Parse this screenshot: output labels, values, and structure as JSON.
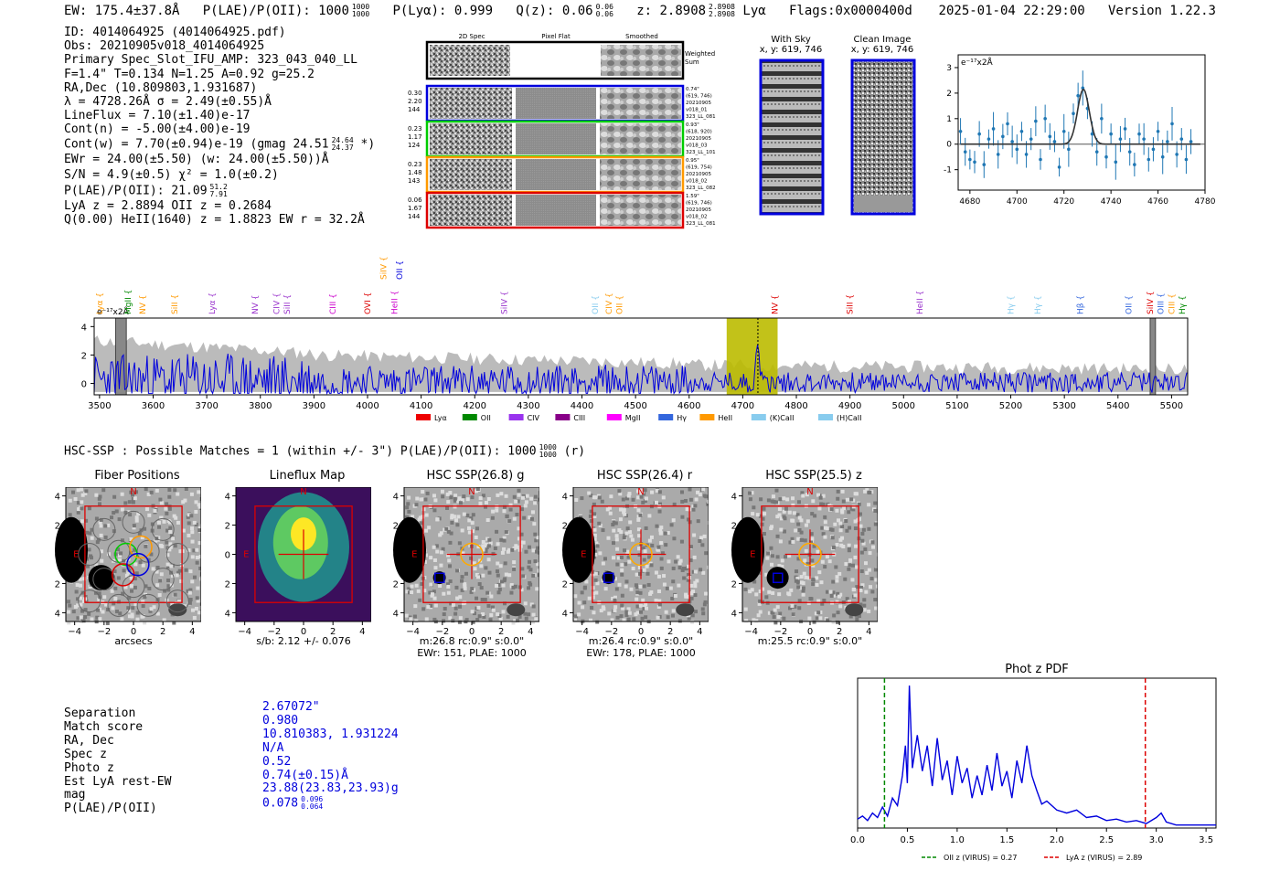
{
  "header": {
    "ew": "EW: 175.4±37.8Å",
    "plae": "P(LAE)/P(OII): 1000",
    "plae_hi": "1000",
    "plae_lo": "1000",
    "plya": "P(Lyα): 0.999",
    "qz": "Q(z): 0.06",
    "qz_hi": "0.06",
    "qz_lo": "0.06",
    "z": "z: 2.8908",
    "z_hi": "2.8908",
    "z_lo": "2.8908",
    "line": "Lyα",
    "flags": "Flags:0x0000400d",
    "timestamp": "2025-01-04 22:29:00",
    "version": "Version 1.22.3"
  },
  "info": {
    "l1": "ID: 4014064925 (4014064925.pdf)",
    "l2": "Obs: 20210905v018_4014064925",
    "l3": "Primary Spec_Slot_IFU_AMP: 323_043_040_LL",
    "l4": "F=1.4\"  T=0.134  N=1.25  A=0.92  g=25.2",
    "l5": "RA,Dec (10.809803,1.931687)",
    "l6": "λ = 4728.26Å  σ = 2.49(±0.55)Å",
    "l7": "LineFlux = 7.10(±1.40)e-17",
    "l8": "Cont(n) = -5.00(±4.00)e-19",
    "l9": "Cont(w) = 7.70(±0.94)e-19 (gmag 24.51",
    "l9_hi": "24.64",
    "l9_lo": "24.37",
    "l9_end": " *)",
    "l10": "EWr = 24.00(±5.50) (w: 24.00(±5.50))Å",
    "l11": "S/N = 4.9(±0.5)  χ² = 1.0(±0.2)",
    "l12": "P(LAE)/P(OII): 21.09",
    "l12_hi": "51.2",
    "l12_lo": "7.91",
    "l13": "LyA z = 2.8894  OII z = 0.2684",
    "l14": "Q(0.00) HeII(1640) z = 1.8823  EW r = 32.2Å"
  },
  "cutouts": {
    "col1": "2D Spec",
    "col2": "Pixel Flat",
    "col3": "Smoothed",
    "weighted": "Weighted",
    "sum": "Sum",
    "rows": [
      {
        "left": [
          "0.30",
          "2.20",
          "144"
        ],
        "right": [
          "0.74\"",
          "(619, 746)",
          "20210905",
          "v018_01",
          "323_LL_081"
        ],
        "color": "#0000dd"
      },
      {
        "left": [
          "0.23",
          "1.17",
          "124"
        ],
        "right": [
          "0.93\"",
          "(618, 920)",
          "20210905",
          "v018_03",
          "323_LL_101"
        ],
        "color": "#00cc00"
      },
      {
        "left": [
          "0.23",
          "1.48",
          "143"
        ],
        "right": [
          "0.95\"",
          "(619, 754)",
          "20210905",
          "v018_02",
          "323_LL_082"
        ],
        "color": "#ff9900"
      },
      {
        "left": [
          "0.06",
          "1.67",
          "144"
        ],
        "right": [
          "1.59\"",
          "(619, 746)",
          "20210905",
          "v018_02",
          "323_LL_081"
        ],
        "color": "#dd0000"
      }
    ]
  },
  "sky": {
    "with_sky": "With Sky",
    "with_sky_xy": "x, y: 619, 746",
    "clean": "Clean Image",
    "clean_xy": "x, y: 619, 746"
  },
  "chart_data": [
    {
      "type": "scatter",
      "id": "line-fit",
      "ylabel": "e⁻¹⁷x2Å",
      "xlim": [
        4675,
        4780
      ],
      "ylim": [
        -1.8,
        3.5
      ],
      "xticks": [
        4680,
        4700,
        4720,
        4740,
        4760,
        4780
      ],
      "yticks": [
        -1,
        0,
        1,
        2,
        3
      ],
      "center": 4728.26,
      "sigma": 2.49,
      "amplitude": 2.15,
      "points": [
        [
          4676,
          0.5
        ],
        [
          4678,
          -0.3
        ],
        [
          4680,
          -0.6
        ],
        [
          4682,
          -0.7
        ],
        [
          4684,
          0.4
        ],
        [
          4686,
          -0.8
        ],
        [
          4688,
          0.2
        ],
        [
          4690,
          0.6
        ],
        [
          4692,
          -0.4
        ],
        [
          4694,
          0.3
        ],
        [
          4696,
          0.8
        ],
        [
          4698,
          0.1
        ],
        [
          4700,
          -0.2
        ],
        [
          4702,
          0.5
        ],
        [
          4704,
          -0.4
        ],
        [
          4706,
          0.2
        ],
        [
          4708,
          0.9
        ],
        [
          4710,
          -0.6
        ],
        [
          4712,
          1.0
        ],
        [
          4714,
          0.3
        ],
        [
          4716,
          0.1
        ],
        [
          4718,
          -0.9
        ],
        [
          4720,
          0.5
        ],
        [
          4722,
          -0.2
        ],
        [
          4724,
          1.2
        ],
        [
          4726,
          1.9
        ],
        [
          4728,
          2.2
        ],
        [
          4730,
          1.4
        ],
        [
          4732,
          0.4
        ],
        [
          4734,
          -0.3
        ],
        [
          4736,
          1.0
        ],
        [
          4738,
          -0.5
        ],
        [
          4740,
          0.4
        ],
        [
          4742,
          -0.7
        ],
        [
          4744,
          0.2
        ],
        [
          4746,
          0.6
        ],
        [
          4748,
          -0.3
        ],
        [
          4750,
          -0.8
        ],
        [
          4752,
          0.4
        ],
        [
          4754,
          0.2
        ],
        [
          4756,
          -0.6
        ],
        [
          4758,
          -0.2
        ],
        [
          4760,
          0.5
        ],
        [
          4762,
          -0.5
        ],
        [
          4764,
          0.1
        ],
        [
          4766,
          0.8
        ],
        [
          4768,
          -0.4
        ],
        [
          4770,
          0.2
        ],
        [
          4772,
          -0.6
        ],
        [
          4774,
          0.1
        ]
      ]
    },
    {
      "type": "line",
      "id": "full-spectrum",
      "ylabel": "e⁻¹⁷x2Å",
      "xlim": [
        3490,
        5530
      ],
      "ylim": [
        -0.8,
        4.6
      ],
      "xticks": [
        3500,
        3600,
        3700,
        3800,
        3900,
        4000,
        4100,
        4200,
        4300,
        4400,
        4500,
        4600,
        4700,
        4800,
        4900,
        5000,
        5100,
        5200,
        5300,
        5400,
        5500
      ],
      "yticks": [
        0,
        2,
        4
      ],
      "highlight": [
        4670,
        4765
      ],
      "marker": 4728.26,
      "gray_bands": [
        [
          3530,
          3550
        ],
        [
          5460,
          5470
        ]
      ],
      "lines_top": [
        {
          "name": "SiIV",
          "wl": 4030,
          "color": "#ff9900"
        },
        {
          "name": "OII",
          "wl": 4060,
          "color": "#0000dd"
        }
      ],
      "lines": [
        {
          "name": "Lyα",
          "wl": 3500,
          "color": "#ff9900"
        },
        {
          "name": "MgII",
          "wl": 3553,
          "color": "#008800"
        },
        {
          "name": "NV",
          "wl": 3580,
          "color": "#ff9900"
        },
        {
          "name": "SiII",
          "wl": 3640,
          "color": "#ff9900"
        },
        {
          "name": "Lyα",
          "wl": 3710,
          "color": "#9933cc"
        },
        {
          "name": "NV",
          "wl": 3790,
          "color": "#9933cc"
        },
        {
          "name": "CIV",
          "wl": 3830,
          "color": "#9933cc"
        },
        {
          "name": "SiII",
          "wl": 3850,
          "color": "#9933cc"
        },
        {
          "name": "CIII",
          "wl": 3935,
          "color": "#cc00cc"
        },
        {
          "name": "OVI",
          "wl": 4000,
          "color": "#dd0000"
        },
        {
          "name": "HeII",
          "wl": 4050,
          "color": "#cc00cc"
        },
        {
          "name": "SiIV",
          "wl": 4255,
          "color": "#9933cc"
        },
        {
          "name": "OII",
          "wl": 4425,
          "color": "#88ccee"
        },
        {
          "name": "CIV",
          "wl": 4450,
          "color": "#ff9900"
        },
        {
          "name": "OII",
          "wl": 4470,
          "color": "#ff9900"
        },
        {
          "name": "NV",
          "wl": 4760,
          "color": "#dd0000"
        },
        {
          "name": "SiII",
          "wl": 4900,
          "color": "#dd0000"
        },
        {
          "name": "HeII",
          "wl": 5030,
          "color": "#9933cc"
        },
        {
          "name": "Hγ",
          "wl": 5200,
          "color": "#88ccee"
        },
        {
          "name": "Hγ",
          "wl": 5250,
          "color": "#88ccee"
        },
        {
          "name": "Hβ",
          "wl": 5330,
          "color": "#3366dd"
        },
        {
          "name": "OII",
          "wl": 5420,
          "color": "#3366dd"
        },
        {
          "name": "SiIV",
          "wl": 5460,
          "color": "#dd0000"
        },
        {
          "name": "OIII",
          "wl": 5480,
          "color": "#3366dd"
        },
        {
          "name": "CIII",
          "wl": 5500,
          "color": "#ff9900"
        },
        {
          "name": "Hγ",
          "wl": 5520,
          "color": "#008800"
        }
      ],
      "legend": [
        {
          "name": "Lyα",
          "color": "#ee0000"
        },
        {
          "name": "OII",
          "color": "#008800"
        },
        {
          "name": "CIV",
          "color": "#9933ee"
        },
        {
          "name": "CIII",
          "color": "#880088"
        },
        {
          "name": "MgII",
          "color": "#ff00ff"
        },
        {
          "name": "Hγ",
          "color": "#3366dd"
        },
        {
          "name": "HeII",
          "color": "#ff9900"
        },
        {
          "name": "(K)CaII",
          "color": "#88ccee"
        },
        {
          "name": "(H)CaII",
          "color": "#88ccee"
        }
      ]
    },
    {
      "type": "line",
      "id": "phot-z-pdf",
      "title": "Phot z PDF",
      "xlim": [
        0,
        3.6
      ],
      "xticks": [
        "0.0",
        "0.5",
        "1.0",
        "1.5",
        "2.0",
        "2.5",
        "3.0",
        "3.5"
      ],
      "oii_z": 0.27,
      "lya_z": 2.89,
      "legend_oii": "OII z (VIRUS) = 0.27",
      "legend_lya": "LyA z (VIRUS) = 2.89",
      "points": [
        [
          0,
          0.06
        ],
        [
          0.05,
          0.08
        ],
        [
          0.1,
          0.05
        ],
        [
          0.15,
          0.1
        ],
        [
          0.2,
          0.07
        ],
        [
          0.25,
          0.14
        ],
        [
          0.3,
          0.08
        ],
        [
          0.35,
          0.2
        ],
        [
          0.4,
          0.15
        ],
        [
          0.45,
          0.35
        ],
        [
          0.48,
          0.55
        ],
        [
          0.5,
          0.3
        ],
        [
          0.52,
          0.95
        ],
        [
          0.55,
          0.4
        ],
        [
          0.6,
          0.62
        ],
        [
          0.65,
          0.38
        ],
        [
          0.7,
          0.55
        ],
        [
          0.75,
          0.28
        ],
        [
          0.8,
          0.6
        ],
        [
          0.85,
          0.32
        ],
        [
          0.9,
          0.45
        ],
        [
          0.95,
          0.22
        ],
        [
          1.0,
          0.48
        ],
        [
          1.05,
          0.3
        ],
        [
          1.1,
          0.4
        ],
        [
          1.15,
          0.2
        ],
        [
          1.2,
          0.35
        ],
        [
          1.25,
          0.22
        ],
        [
          1.3,
          0.42
        ],
        [
          1.35,
          0.25
        ],
        [
          1.4,
          0.5
        ],
        [
          1.45,
          0.28
        ],
        [
          1.5,
          0.38
        ],
        [
          1.55,
          0.2
        ],
        [
          1.6,
          0.45
        ],
        [
          1.65,
          0.3
        ],
        [
          1.7,
          0.55
        ],
        [
          1.75,
          0.35
        ],
        [
          1.8,
          0.25
        ],
        [
          1.85,
          0.16
        ],
        [
          1.9,
          0.18
        ],
        [
          2.0,
          0.12
        ],
        [
          2.1,
          0.1
        ],
        [
          2.2,
          0.12
        ],
        [
          2.3,
          0.07
        ],
        [
          2.4,
          0.08
        ],
        [
          2.5,
          0.05
        ],
        [
          2.6,
          0.06
        ],
        [
          2.7,
          0.04
        ],
        [
          2.8,
          0.05
        ],
        [
          2.9,
          0.03
        ],
        [
          3.0,
          0.07
        ],
        [
          3.05,
          0.1
        ],
        [
          3.1,
          0.04
        ],
        [
          3.2,
          0.02
        ],
        [
          3.3,
          0.02
        ],
        [
          3.6,
          0.02
        ]
      ]
    }
  ],
  "hsc": {
    "summary": "HSC-SSP : Possible Matches = 1 (within +/- 3\")  P(LAE)/P(OII): 1000",
    "summary_hi": "1000",
    "summary_lo": "1000",
    "summary_end": " (r)",
    "ticks": [
      "−4",
      "−2",
      "0",
      "2",
      "4"
    ],
    "north": "N",
    "east": "E",
    "panels": [
      {
        "title": "Fiber Positions",
        "cap1": "arcsecs",
        "cap2": ""
      },
      {
        "title": "Lineflux Map",
        "cap1": "s/b: 2.12 +/- 0.076",
        "cap2": ""
      },
      {
        "title": "HSC SSP(26.8) g",
        "cap1": "m:26.8 rc:0.9\"  s:0.0\"",
        "cap2": "EWr: 151, PLAE: 1000"
      },
      {
        "title": "HSC SSP(26.4) r",
        "cap1": "m:26.4 rc:0.9\"  s:0.0\"",
        "cap2": "EWr: 178, PLAE: 1000"
      },
      {
        "title": "HSC SSP(25.5) z",
        "cap1": "m:25.5 rc:0.9\"  s:0.0\"",
        "cap2": ""
      }
    ]
  },
  "match": {
    "labels": [
      "Separation",
      "Match score",
      "RA, Dec",
      "Spec z",
      "Photo z",
      "Est LyA rest-EW",
      "mag",
      "P(LAE)/P(OII)"
    ],
    "values": [
      "2.67072\"",
      "0.980",
      "10.810383, 1.931224",
      "N/A",
      "0.52",
      "0.74(±0.15)Å",
      "23.88(23.83,23.93)g",
      "0.078"
    ],
    "plae_hi": "0.096",
    "plae_lo": "0.064"
  },
  "colors": {
    "spectrum": "#0000dd",
    "error": "#bbbbbb",
    "highlight": "#bbbb00",
    "fit": "#333333",
    "points": "#1f77b4"
  }
}
